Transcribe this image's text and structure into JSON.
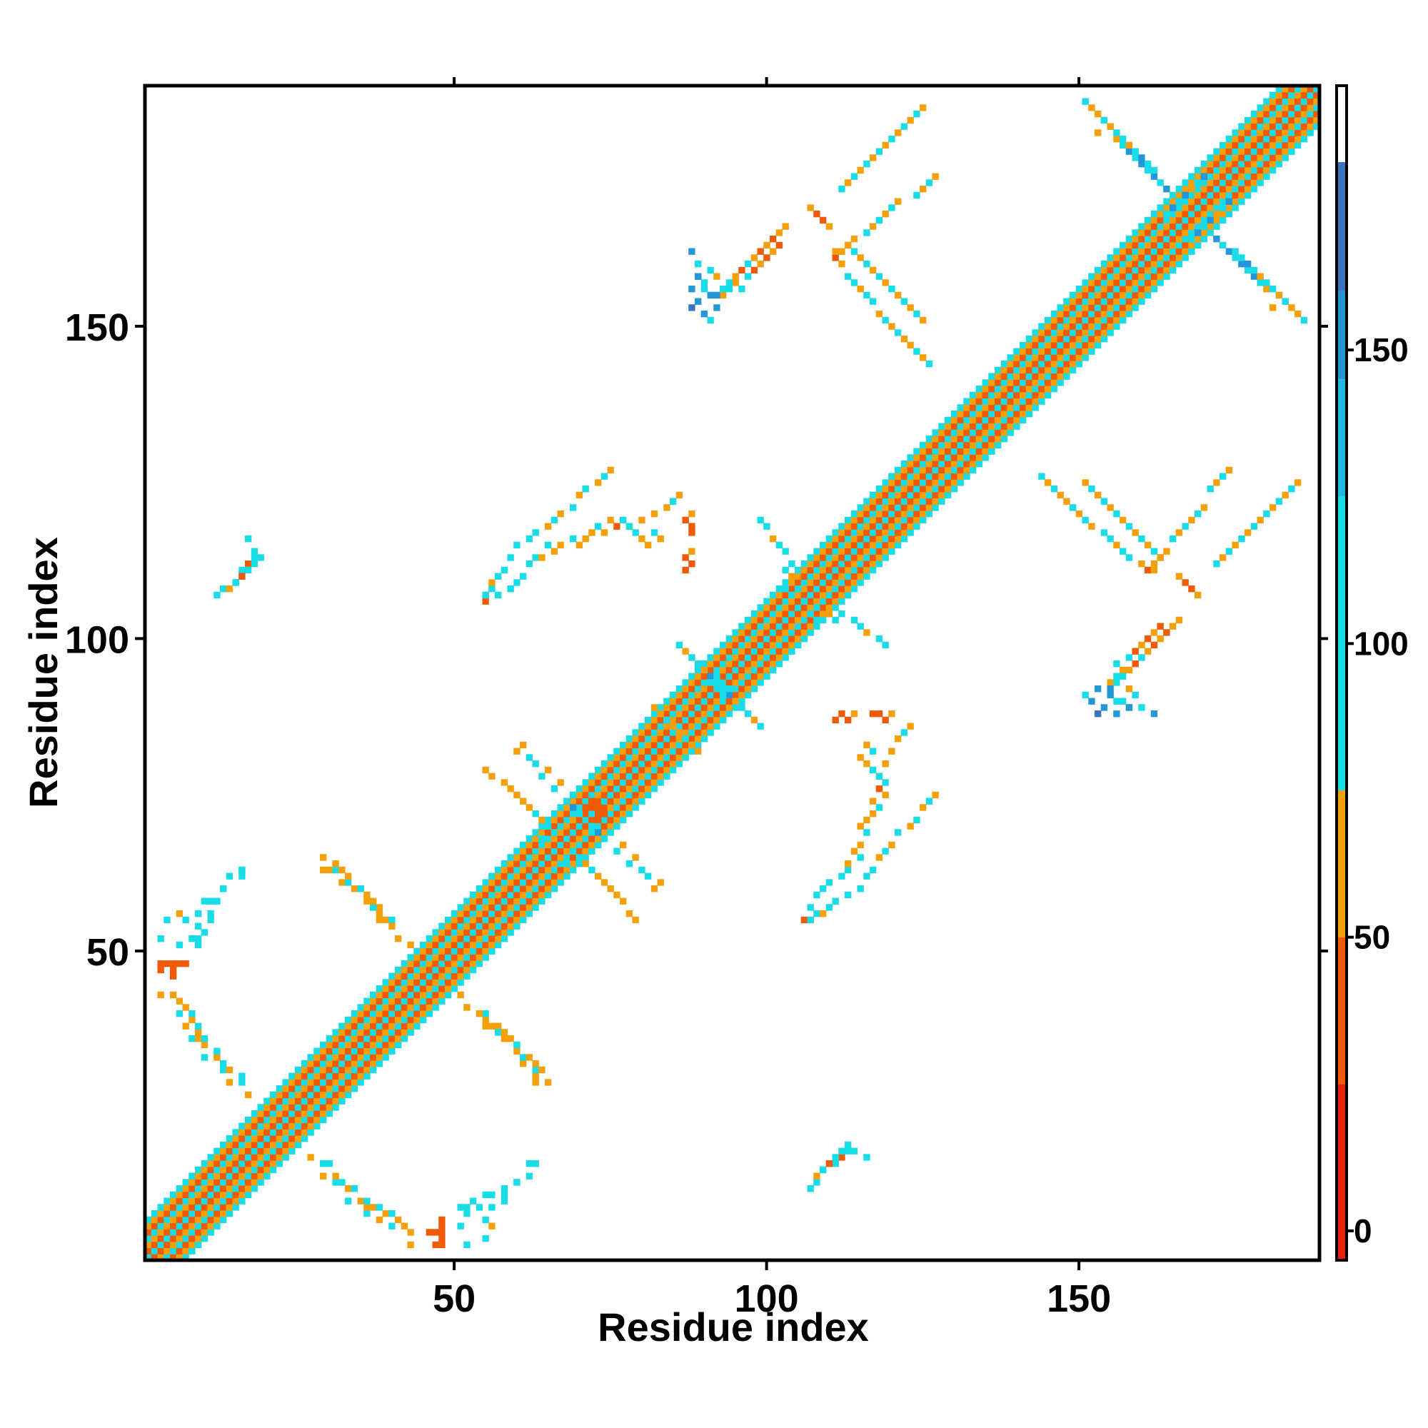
{
  "chart_data": {
    "type": "heatmap",
    "title": "",
    "xlabel": "Residue index",
    "ylabel": "Residue index",
    "xlim": [
      1,
      188
    ],
    "ylim": [
      1,
      188
    ],
    "x_ticks": [
      50,
      100,
      150
    ],
    "y_ticks": [
      50,
      100,
      150
    ],
    "colorbar": {
      "ticks": [
        0,
        50,
        100,
        150
      ],
      "range": [
        -5,
        195
      ],
      "bands": [
        {
          "from": -5,
          "to": 25,
          "color": "#e8210a"
        },
        {
          "from": 25,
          "to": 50,
          "color": "#f05a05"
        },
        {
          "from": 50,
          "to": 75,
          "color": "#f5a00a"
        },
        {
          "from": 75,
          "to": 125,
          "color": "#18dde8"
        },
        {
          "from": 125,
          "to": 145,
          "color": "#22b8e0"
        },
        {
          "from": 145,
          "to": 160,
          "color": "#2596d8"
        },
        {
          "from": 160,
          "to": 182,
          "color": "#3a75c0"
        },
        {
          "from": 182,
          "to": 195,
          "color": "#ffffff"
        }
      ]
    },
    "diagonal_band": {
      "halfwidth": 6,
      "value_pattern": [
        90,
        40,
        60,
        95,
        35,
        60
      ]
    },
    "cells": [
      [
        3,
        47,
        30
      ],
      [
        3,
        48,
        30
      ],
      [
        4,
        48,
        25
      ],
      [
        6,
        48,
        40
      ],
      [
        3,
        52,
        90
      ],
      [
        4,
        55,
        95
      ],
      [
        6,
        56,
        60
      ],
      [
        7,
        55,
        90
      ],
      [
        8,
        52,
        95
      ],
      [
        9,
        56,
        90
      ],
      [
        10,
        58,
        95
      ],
      [
        11,
        58,
        90
      ],
      [
        13,
        60,
        95
      ],
      [
        14,
        62,
        90
      ],
      [
        16,
        63,
        95
      ],
      [
        3,
        43,
        60
      ],
      [
        5,
        43,
        60
      ],
      [
        6,
        40,
        90
      ],
      [
        7,
        38,
        60
      ],
      [
        8,
        36,
        90
      ],
      [
        9,
        36,
        60
      ],
      [
        10,
        33,
        90
      ],
      [
        12,
        33,
        60
      ],
      [
        13,
        31,
        90
      ],
      [
        14,
        29,
        60
      ],
      [
        16,
        29,
        90
      ],
      [
        17,
        27,
        60
      ],
      [
        29,
        65,
        60
      ],
      [
        29,
        63,
        60
      ],
      [
        30,
        63,
        60
      ],
      [
        31,
        63,
        90
      ],
      [
        32,
        61,
        60
      ],
      [
        33,
        61,
        90
      ],
      [
        34,
        60,
        60
      ],
      [
        35,
        60,
        90
      ],
      [
        36,
        58,
        60
      ],
      [
        37,
        58,
        60
      ],
      [
        38,
        57,
        60
      ],
      [
        39,
        55,
        60
      ],
      [
        40,
        55,
        90
      ],
      [
        30,
        16,
        90
      ],
      [
        31,
        14,
        60
      ],
      [
        32,
        13,
        90
      ],
      [
        33,
        12,
        60
      ],
      [
        34,
        12,
        90
      ],
      [
        35,
        10,
        60
      ],
      [
        36,
        10,
        90
      ],
      [
        37,
        9,
        60
      ],
      [
        38,
        9,
        90
      ],
      [
        39,
        8,
        60
      ],
      [
        40,
        8,
        90
      ],
      [
        41,
        7,
        60
      ],
      [
        42,
        6,
        60
      ],
      [
        46,
        5,
        30
      ],
      [
        47,
        5,
        30
      ],
      [
        48,
        5,
        30
      ],
      [
        48,
        7,
        25
      ],
      [
        51,
        6,
        90
      ],
      [
        51,
        9,
        90
      ],
      [
        52,
        9,
        90
      ],
      [
        53,
        10,
        90
      ],
      [
        54,
        9,
        90
      ],
      [
        55,
        11,
        90
      ],
      [
        56,
        11,
        90
      ],
      [
        58,
        12,
        90
      ],
      [
        60,
        13,
        90
      ],
      [
        62,
        16,
        90
      ],
      [
        63,
        16,
        90
      ],
      [
        51,
        43,
        60
      ],
      [
        52,
        41,
        60
      ],
      [
        54,
        40,
        60
      ],
      [
        55,
        38,
        60
      ],
      [
        56,
        38,
        60
      ],
      [
        57,
        37,
        90
      ],
      [
        58,
        37,
        60
      ],
      [
        59,
        36,
        60
      ],
      [
        60,
        35,
        90
      ],
      [
        62,
        33,
        60
      ],
      [
        63,
        32,
        60
      ],
      [
        64,
        31,
        60
      ],
      [
        55,
        106,
        30
      ],
      [
        55,
        107,
        60
      ],
      [
        56,
        108,
        90
      ],
      [
        57,
        107,
        90
      ],
      [
        59,
        108,
        90
      ],
      [
        60,
        109,
        90
      ],
      [
        61,
        110,
        90
      ],
      [
        62,
        112,
        90
      ],
      [
        63,
        113,
        90
      ],
      [
        64,
        113,
        60
      ],
      [
        65,
        115,
        90
      ],
      [
        66,
        114,
        60
      ],
      [
        67,
        115,
        60
      ],
      [
        69,
        116,
        90
      ],
      [
        70,
        115,
        60
      ],
      [
        71,
        116,
        60
      ],
      [
        72,
        117,
        60
      ],
      [
        73,
        118,
        90
      ],
      [
        74,
        117,
        60
      ],
      [
        75,
        119,
        60
      ],
      [
        76,
        118,
        25
      ],
      [
        77,
        119,
        90
      ],
      [
        78,
        118,
        60
      ],
      [
        79,
        117,
        90
      ],
      [
        80,
        116,
        60
      ],
      [
        81,
        115,
        60
      ],
      [
        82,
        117,
        90
      ],
      [
        83,
        116,
        60
      ],
      [
        87,
        111,
        25
      ],
      [
        88,
        112,
        25
      ],
      [
        87,
        113,
        25
      ],
      [
        88,
        114,
        60
      ],
      [
        60,
        82,
        60
      ],
      [
        61,
        83,
        60
      ],
      [
        62,
        81,
        90
      ],
      [
        63,
        80,
        90
      ],
      [
        64,
        78,
        90
      ],
      [
        65,
        79,
        60
      ],
      [
        66,
        76,
        90
      ],
      [
        67,
        77,
        60
      ],
      [
        68,
        74,
        90
      ],
      [
        69,
        75,
        90
      ],
      [
        69,
        73,
        150
      ],
      [
        70,
        72,
        90
      ],
      [
        68,
        64,
        90
      ],
      [
        69,
        66,
        90
      ],
      [
        70,
        65,
        90
      ],
      [
        71,
        64,
        60
      ],
      [
        72,
        63,
        90
      ],
      [
        73,
        62,
        60
      ],
      [
        74,
        61,
        60
      ],
      [
        75,
        60,
        60
      ],
      [
        76,
        59,
        60
      ],
      [
        77,
        58,
        60
      ],
      [
        78,
        56,
        60
      ],
      [
        79,
        55,
        60
      ],
      [
        72,
        74,
        25
      ],
      [
        73,
        73,
        25
      ],
      [
        73,
        71,
        30
      ],
      [
        74,
        72,
        25
      ],
      [
        82,
        89,
        60
      ],
      [
        83,
        88,
        60
      ],
      [
        84,
        87,
        90
      ],
      [
        85,
        86,
        90
      ],
      [
        86,
        85,
        60
      ],
      [
        87,
        84,
        90
      ],
      [
        89,
        96,
        90
      ],
      [
        90,
        95,
        90
      ],
      [
        91,
        94,
        150
      ],
      [
        92,
        93,
        90
      ],
      [
        93,
        91,
        90
      ],
      [
        94,
        92,
        90
      ],
      [
        95,
        90,
        60
      ],
      [
        96,
        89,
        90
      ],
      [
        97,
        88,
        90
      ],
      [
        98,
        87,
        60
      ],
      [
        99,
        86,
        90
      ],
      [
        103,
        108,
        90
      ],
      [
        104,
        107,
        90
      ],
      [
        106,
        106,
        90
      ],
      [
        108,
        105,
        90
      ],
      [
        110,
        104,
        60
      ],
      [
        111,
        103,
        90
      ],
      [
        112,
        104,
        90
      ],
      [
        114,
        103,
        90
      ],
      [
        115,
        102,
        90
      ],
      [
        116,
        101,
        60
      ],
      [
        118,
        100,
        90
      ],
      [
        119,
        99,
        90
      ],
      [
        107,
        55,
        90
      ],
      [
        109,
        56,
        60
      ],
      [
        110,
        57,
        90
      ],
      [
        111,
        58,
        90
      ],
      [
        113,
        59,
        90
      ],
      [
        115,
        60,
        90
      ],
      [
        116,
        62,
        90
      ],
      [
        117,
        63,
        90
      ],
      [
        118,
        65,
        60
      ],
      [
        119,
        66,
        90
      ],
      [
        120,
        67,
        60
      ],
      [
        121,
        69,
        90
      ],
      [
        123,
        70,
        60
      ],
      [
        124,
        71,
        90
      ],
      [
        125,
        73,
        60
      ],
      [
        126,
        74,
        90
      ],
      [
        127,
        75,
        60
      ],
      [
        118,
        78,
        90
      ],
      [
        119,
        80,
        60
      ],
      [
        120,
        82,
        60
      ],
      [
        121,
        84,
        60
      ],
      [
        122,
        85,
        90
      ],
      [
        123,
        86,
        60
      ],
      [
        117,
        88,
        25
      ],
      [
        118,
        88,
        25
      ],
      [
        119,
        87,
        25
      ],
      [
        120,
        88,
        60
      ],
      [
        109,
        15,
        90
      ],
      [
        110,
        16,
        90
      ],
      [
        111,
        16,
        90
      ],
      [
        112,
        17,
        25
      ],
      [
        113,
        18,
        90
      ],
      [
        114,
        18,
        90
      ],
      [
        116,
        17,
        90
      ],
      [
        12,
        107,
        90
      ],
      [
        13,
        108,
        90
      ],
      [
        14,
        108,
        60
      ],
      [
        15,
        109,
        90
      ],
      [
        16,
        110,
        25
      ],
      [
        17,
        111,
        90
      ],
      [
        18,
        112,
        90
      ],
      [
        19,
        113,
        90
      ],
      [
        88,
        153,
        160
      ],
      [
        89,
        154,
        150
      ],
      [
        90,
        152,
        150
      ],
      [
        91,
        151,
        90
      ],
      [
        92,
        153,
        150
      ],
      [
        93,
        155,
        60
      ],
      [
        94,
        156,
        90
      ],
      [
        95,
        157,
        60
      ],
      [
        96,
        156,
        90
      ],
      [
        97,
        158,
        90
      ],
      [
        98,
        159,
        30
      ],
      [
        99,
        160,
        60
      ],
      [
        100,
        161,
        25
      ],
      [
        101,
        162,
        60
      ],
      [
        102,
        163,
        30
      ],
      [
        88,
        156,
        150
      ],
      [
        89,
        158,
        150
      ],
      [
        90,
        157,
        90
      ],
      [
        91,
        159,
        90
      ],
      [
        92,
        158,
        60
      ],
      [
        111,
        161,
        25
      ],
      [
        112,
        162,
        60
      ],
      [
        113,
        163,
        25
      ],
      [
        114,
        164,
        60
      ],
      [
        116,
        165,
        90
      ],
      [
        117,
        166,
        60
      ],
      [
        118,
        167,
        90
      ],
      [
        119,
        168,
        60
      ],
      [
        120,
        169,
        90
      ],
      [
        121,
        170,
        60
      ],
      [
        124,
        171,
        90
      ],
      [
        125,
        172,
        60
      ],
      [
        126,
        173,
        90
      ],
      [
        127,
        174,
        60
      ],
      [
        111,
        162,
        60
      ],
      [
        112,
        160,
        60
      ],
      [
        113,
        158,
        90
      ],
      [
        114,
        157,
        90
      ],
      [
        115,
        156,
        60
      ],
      [
        116,
        155,
        90
      ],
      [
        117,
        154,
        90
      ],
      [
        118,
        152,
        60
      ],
      [
        119,
        151,
        90
      ],
      [
        120,
        150,
        60
      ],
      [
        121,
        149,
        90
      ],
      [
        122,
        148,
        60
      ],
      [
        123,
        147,
        60
      ],
      [
        124,
        146,
        90
      ],
      [
        125,
        145,
        60
      ],
      [
        126,
        144,
        90
      ],
      [
        151,
        125,
        60
      ],
      [
        152,
        124,
        90
      ],
      [
        153,
        123,
        60
      ],
      [
        154,
        122,
        90
      ],
      [
        155,
        121,
        60
      ],
      [
        156,
        120,
        90
      ],
      [
        157,
        119,
        60
      ],
      [
        158,
        118,
        90
      ],
      [
        159,
        117,
        60
      ],
      [
        160,
        116,
        90
      ],
      [
        161,
        115,
        60
      ],
      [
        162,
        114,
        90
      ],
      [
        163,
        113,
        60
      ],
      [
        166,
        110,
        60
      ],
      [
        167,
        109,
        30
      ],
      [
        168,
        108,
        30
      ],
      [
        169,
        107,
        60
      ],
      [
        172,
        112,
        90
      ],
      [
        173,
        113,
        60
      ],
      [
        174,
        114,
        90
      ],
      [
        175,
        115,
        60
      ],
      [
        176,
        116,
        90
      ],
      [
        177,
        117,
        60
      ],
      [
        178,
        118,
        90
      ],
      [
        179,
        119,
        60
      ],
      [
        180,
        120,
        90
      ],
      [
        181,
        121,
        60
      ],
      [
        182,
        122,
        90
      ],
      [
        183,
        123,
        60
      ],
      [
        184,
        124,
        90
      ],
      [
        185,
        125,
        60
      ],
      [
        155,
        92,
        150
      ],
      [
        156,
        93,
        90
      ],
      [
        157,
        94,
        90
      ],
      [
        158,
        95,
        60
      ],
      [
        159,
        96,
        25
      ],
      [
        160,
        97,
        90
      ],
      [
        161,
        98,
        60
      ],
      [
        162,
        99,
        25
      ],
      [
        163,
        100,
        60
      ],
      [
        164,
        101,
        30
      ],
      [
        165,
        102,
        60
      ],
      [
        166,
        103,
        60
      ],
      [
        155,
        91,
        150
      ],
      [
        156,
        90,
        90
      ],
      [
        158,
        89,
        150
      ],
      [
        160,
        89,
        90
      ],
      [
        162,
        88,
        150
      ],
      [
        153,
        181,
        60
      ],
      [
        154,
        183,
        60
      ],
      [
        155,
        182,
        90
      ],
      [
        156,
        180,
        60
      ],
      [
        157,
        179,
        90
      ],
      [
        158,
        178,
        150
      ],
      [
        159,
        177,
        90
      ],
      [
        160,
        176,
        150
      ],
      [
        161,
        175,
        90
      ],
      [
        162,
        174,
        150
      ],
      [
        163,
        173,
        90
      ],
      [
        164,
        172,
        150
      ],
      [
        164,
        168,
        90
      ],
      [
        165,
        169,
        150
      ],
      [
        166,
        170,
        90
      ],
      [
        167,
        171,
        150
      ],
      [
        168,
        172,
        60
      ],
      [
        169,
        173,
        90
      ],
      [
        170,
        174,
        150
      ],
      [
        175,
        162,
        90
      ],
      [
        176,
        161,
        90
      ],
      [
        177,
        160,
        150
      ],
      [
        178,
        159,
        90
      ],
      [
        179,
        158,
        60
      ],
      [
        180,
        157,
        90
      ],
      [
        181,
        156,
        90
      ],
      [
        182,
        155,
        60
      ],
      [
        183,
        154,
        90
      ],
      [
        184,
        153,
        60
      ],
      [
        185,
        152,
        60
      ],
      [
        186,
        151,
        90
      ]
    ]
  }
}
